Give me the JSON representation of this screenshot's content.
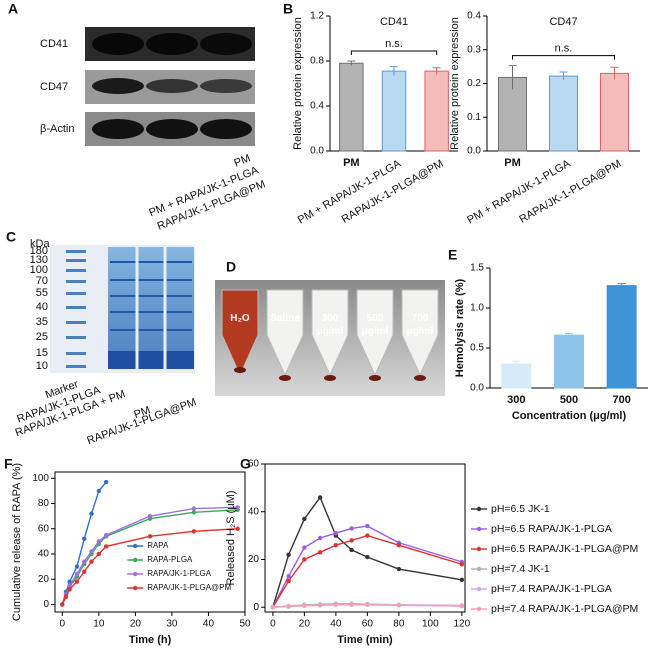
{
  "panel_A": {
    "letter": "A",
    "rows": [
      "CD41",
      "CD47",
      "β-Actin"
    ],
    "lanes": [
      "PM",
      "PM + RAPA/JK-1-PLGA",
      "RAPA/JK-1-PLGA@PM"
    ]
  },
  "panel_C": {
    "letter": "C",
    "unit": "kDa",
    "ladder": [
      "180",
      "130",
      "100",
      "70",
      "55",
      "40",
      "35",
      "25",
      "15",
      "10"
    ],
    "lanes": [
      "Marker",
      "RAPA/JK-1-PLGA",
      "RAPA/JK-1-PLGA + PM",
      "PM",
      "RAPA/JK-1-PLGA@PM"
    ]
  },
  "panel_D": {
    "letter": "D",
    "tubes": [
      [
        "H₂O"
      ],
      [
        "Saline"
      ],
      [
        "300",
        "μg/ml"
      ],
      [
        "500",
        "μg/ml"
      ],
      [
        "700",
        "μg/ml"
      ]
    ]
  },
  "chart_data": [
    {
      "panel": "B",
      "type": "bar",
      "title": "CD41",
      "y_label": "Relative protein expression",
      "frame": "axes",
      "categories": [
        "PM",
        "PM + RAPA/JK-1-PLGA",
        "RAPA/JK-1-PLGA@PM"
      ],
      "values": [
        0.78,
        0.71,
        0.71
      ],
      "errors": [
        0.02,
        0.04,
        0.03
      ],
      "colors": [
        "#b3b3b3",
        "#b9d9f2",
        "#f6bcbc"
      ],
      "edge_colors": [
        "#6f6f6f",
        "#5b9bd5",
        "#e06060"
      ],
      "ylim": [
        0,
        1.2
      ],
      "yticks": [
        {
          "value": 0,
          "label": "0.0"
        },
        0.4,
        0.8,
        1.2
      ],
      "annotation": "n.s."
    },
    {
      "type": "bar",
      "title": "CD47",
      "y_label": "Relative protein expression",
      "frame": "axes",
      "categories": [
        "PM",
        "PM + RAPA/JK-1-PLGA",
        "RAPA/JK-1-PLGA@PM"
      ],
      "values": [
        0.218,
        0.222,
        0.23
      ],
      "errors": [
        0.035,
        0.012,
        0.018
      ],
      "colors": [
        "#b3b3b3",
        "#b9d9f2",
        "#f6bcbc"
      ],
      "edge_colors": [
        "#6f6f6f",
        "#5b9bd5",
        "#e06060"
      ],
      "ylim": [
        0,
        0.4
      ],
      "yticks": [
        {
          "value": 0,
          "label": "0.0"
        },
        0.1,
        0.2,
        0.3,
        0.4
      ],
      "annotation": "n.s."
    },
    {
      "panel": "E",
      "type": "bar",
      "x_label": "Concentration (μg/ml)",
      "y_label": "Hemolysis rate (%)",
      "frame": "axes",
      "categories": [
        "300",
        "500",
        "700"
      ],
      "values": [
        0.3,
        0.66,
        1.28
      ],
      "errors": [
        0.035,
        0.02,
        0.025
      ],
      "colors": [
        "#d6ebf8",
        "#8cc4ea",
        "#3d93d6"
      ],
      "edge_colors": [
        "#d6ebf8",
        "#8cc4ea",
        "#3d93d6"
      ],
      "ylim": [
        0,
        1.5
      ],
      "yticks": [
        {
          "value": 0,
          "label": "0.0"
        },
        0.5,
        {
          "value": 1,
          "label": "1.0"
        },
        1.5
      ]
    },
    {
      "panel": "F",
      "type": "line",
      "x_label": "Time (h)",
      "y_label": "Cumulative release of RAPA (%)",
      "frame": "box",
      "legend": "lower right",
      "xlim": [
        -2,
        50
      ],
      "xticks": [
        0,
        10,
        20,
        30,
        40,
        50
      ],
      "ylim": [
        -6,
        105
      ],
      "yticks": [
        0,
        20,
        40,
        60,
        80,
        100
      ],
      "series": [
        {
          "name": "RAPA",
          "color": "#2f6fd0",
          "x": [
            0,
            1,
            2,
            4,
            6,
            8,
            10,
            12
          ],
          "values": [
            0,
            10,
            18,
            30,
            52,
            72,
            90,
            97
          ]
        },
        {
          "name": "RAPA-PLGA",
          "color": "#3aaa5a",
          "x": [
            0,
            1,
            2,
            4,
            6,
            8,
            10,
            12,
            24,
            36,
            48
          ],
          "values": [
            0,
            8,
            14,
            22,
            32,
            40,
            48,
            54,
            68,
            73,
            75
          ]
        },
        {
          "name": "RAPA/JK-1-PLGA",
          "color": "#a070e0",
          "x": [
            0,
            1,
            2,
            4,
            6,
            8,
            10,
            12,
            24,
            36,
            48
          ],
          "values": [
            0,
            8,
            15,
            24,
            34,
            42,
            50,
            55,
            70,
            76,
            77
          ]
        },
        {
          "name": "RAPA/JK-1-PLGA@PM",
          "color": "#e03030",
          "x": [
            0,
            1,
            2,
            4,
            6,
            8,
            10,
            12,
            24,
            36,
            48
          ],
          "values": [
            0,
            6,
            12,
            18,
            26,
            34,
            40,
            46,
            54,
            58,
            60
          ]
        }
      ]
    },
    {
      "panel": "G",
      "type": "line",
      "x_label": "Time (min)",
      "y_label": "Released H₂S (μM)",
      "frame": "box",
      "legend": "right",
      "xlim": [
        -5,
        122
      ],
      "xticks": [
        0,
        20,
        40,
        60,
        80,
        100,
        120
      ],
      "ylim": [
        -2,
        60
      ],
      "yticks": [
        0,
        20,
        40,
        60
      ],
      "x": [
        0,
        10,
        20,
        30,
        40,
        50,
        60,
        80,
        120
      ],
      "series": [
        {
          "name": "pH=6.5 JK-1",
          "color": "#333333",
          "values": [
            0,
            22,
            37,
            46,
            30,
            24,
            21,
            16,
            11.5
          ]
        },
        {
          "name": "pH=6.5 RAPA/JK-1-PLGA",
          "color": "#9b5de5",
          "values": [
            0,
            13,
            25,
            29,
            31,
            33,
            34,
            27,
            19
          ]
        },
        {
          "name": "pH=6.5 RAPA/JK-1-PLGA@PM",
          "color": "#e03030",
          "values": [
            0,
            11,
            20,
            23,
            26,
            28,
            30,
            26,
            18
          ]
        },
        {
          "name": "pH=7.4 JK-1",
          "color": "#b0b0b0",
          "values": [
            0,
            0.5,
            1,
            1.2,
            1.5,
            1.5,
            1.3,
            1,
            0.5
          ]
        },
        {
          "name": "pH=7.4 RAPA/JK-1-PLGA",
          "color": "#c9a8f0",
          "values": [
            0,
            0.5,
            0.8,
            1,
            1.2,
            1.5,
            1.2,
            1,
            0.8
          ]
        },
        {
          "name": "pH=7.4 RAPA/JK-1-PLGA@PM",
          "color": "#f4a0b0",
          "values": [
            0,
            0.3,
            0.6,
            0.8,
            1,
            1,
            1,
            0.8,
            0.5
          ]
        }
      ]
    }
  ]
}
